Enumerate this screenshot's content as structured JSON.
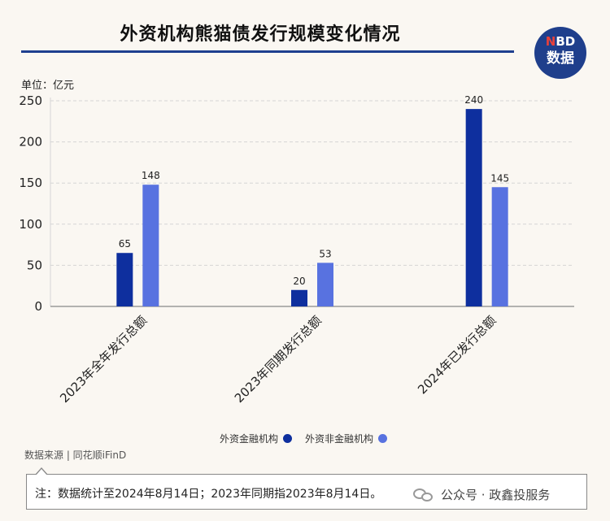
{
  "header": {
    "title": "外资机构熊猫债发行规模变化情况",
    "badge_top_n": "N",
    "badge_top_rest": "BD",
    "badge_bottom": "数据"
  },
  "unit": "单位：亿元",
  "legend": {
    "items": [
      "外资金融机构",
      "外资非金融机构"
    ]
  },
  "source": "数据来源 | 同花顺iFinD",
  "note": "注：数据统计至2024年8月14日；2023年同期指2023年8月14日。",
  "watermark": "公众号 · 政鑫投服务",
  "colors": {
    "series1": "#0e2f9e",
    "series2": "#5872e0",
    "grid": "#d5d5d5",
    "axis": "#888888"
  },
  "chart_data": {
    "type": "bar",
    "categories": [
      "2023年全年发行总额",
      "2023年同期发行总额",
      "2024年已发行总额"
    ],
    "series": [
      {
        "name": "外资金融机构",
        "values": [
          65,
          20,
          240
        ]
      },
      {
        "name": "外资非金融机构",
        "values": [
          148,
          53,
          145
        ]
      }
    ],
    "ylim": [
      0,
      250
    ],
    "yticks": [
      0,
      50,
      100,
      150,
      200,
      250
    ],
    "grid": true,
    "legend_position": "bottom"
  }
}
